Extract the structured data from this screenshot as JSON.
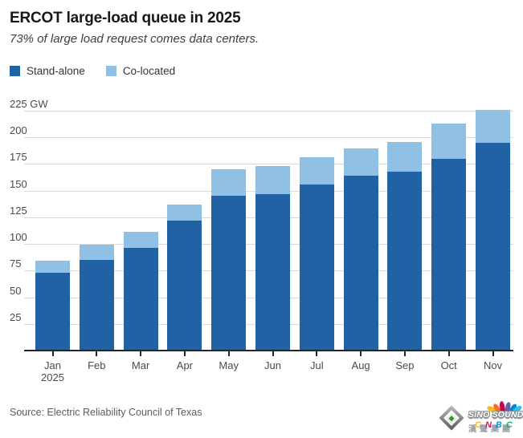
{
  "header": {
    "title": "ERCOT large-load queue in 2025",
    "subtitle": "73% of large load request comes data centers."
  },
  "legend": [
    {
      "label": "Stand-alone",
      "color": "#2062a3"
    },
    {
      "label": "Co-located",
      "color": "#90c1e5"
    }
  ],
  "chart_data": {
    "type": "bar",
    "stacked": true,
    "categories": [
      "Jan",
      "Feb",
      "Mar",
      "Apr",
      "May",
      "Jun",
      "Jul",
      "Aug",
      "Sep",
      "Oct",
      "Nov"
    ],
    "first_category_sub": "2025",
    "series": [
      {
        "name": "Stand-alone",
        "color": "#2062a3",
        "values": [
          73,
          85,
          96,
          122,
          145,
          147,
          156,
          164,
          168,
          180,
          195
        ]
      },
      {
        "name": "Co-located",
        "color": "#90c1e5",
        "values": [
          11,
          14,
          15,
          15,
          25,
          26,
          25,
          26,
          28,
          33,
          31
        ]
      }
    ],
    "totals": [
      84,
      99,
      111,
      137,
      170,
      173,
      181,
      190,
      196,
      213,
      226
    ],
    "unit": "GW",
    "yticks": [
      25,
      50,
      75,
      100,
      125,
      150,
      175,
      200,
      225
    ],
    "ytick_top_label": "225 GW",
    "ylim": [
      0,
      225
    ],
    "grid": true,
    "grid_color": "#d9d9d9",
    "axis_color": "#1c2736",
    "legend_position": "top-left"
  },
  "footer": {
    "source": "Source: Electric Reliability Council of Texas"
  },
  "logo": {
    "name": "SiNO SOUND",
    "chinese": "漢聲集團",
    "wordmark": "CNBC",
    "letter_colors": [
      "#fcb711",
      "#cc004c",
      "#0089d0",
      "#0db14b"
    ],
    "peacock_colors": [
      "#fcb711",
      "#f37021",
      "#cc004c",
      "#6460aa",
      "#0089d0",
      "#31c0e8"
    ]
  }
}
